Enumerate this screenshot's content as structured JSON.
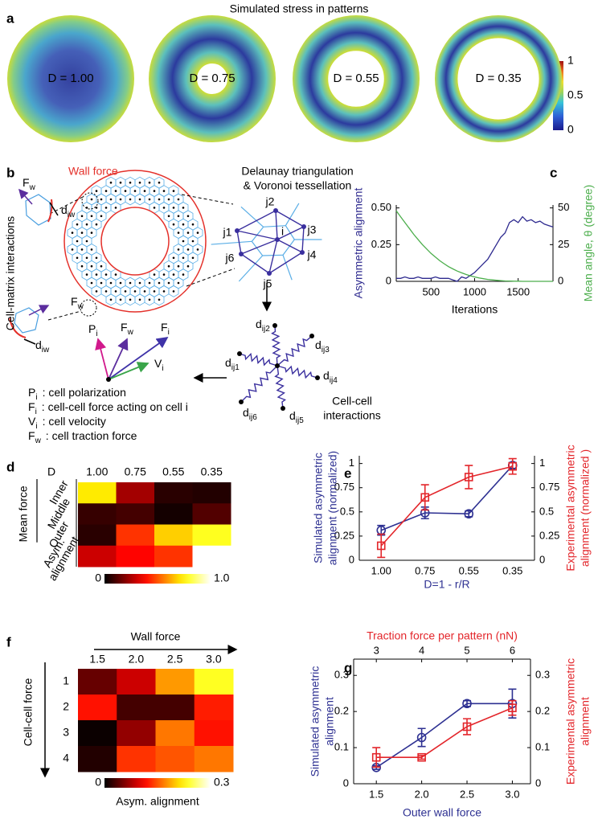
{
  "panel_labels": [
    "a",
    "b",
    "c",
    "d",
    "e",
    "f",
    "g"
  ],
  "stress_patterns": {
    "title": "Simulated stress in patterns",
    "labels": [
      "D = 1.00",
      "D = 0.75",
      "D = 0.55",
      "D = 0.35"
    ],
    "colorbar_ticks": [
      1,
      0.5,
      0
    ]
  },
  "model_diagram": {
    "wall_force": "Wall force",
    "tessellation": [
      "Delaunay triangulation",
      "& Voronoi tessellation"
    ],
    "cell_matrix": "Cell-matrix interactions",
    "cell_cell": [
      "Cell-cell",
      "interactions"
    ],
    "neighbors": [
      "j1",
      "j2",
      "j3",
      "j4",
      "j5",
      "j6"
    ],
    "center": "i",
    "symbols": [
      {
        "base": "F",
        "sub": "w"
      },
      {
        "base": "d",
        "sub": "iw"
      },
      {
        "base": "F",
        "sub": "w"
      },
      {
        "base": "d",
        "sub": "iw"
      },
      {
        "base": "P",
        "sub": "i"
      },
      {
        "base": "F",
        "sub": "w"
      },
      {
        "base": "F",
        "sub": "i"
      },
      {
        "base": "V",
        "sub": "i"
      }
    ],
    "springs": [
      {
        "base": "d",
        "sub": "ij1"
      },
      {
        "base": "d",
        "sub": "ij2"
      },
      {
        "base": "d",
        "sub": "ij3"
      },
      {
        "base": "d",
        "sub": "ij4"
      },
      {
        "base": "d",
        "sub": "ij5"
      },
      {
        "base": "d",
        "sub": "ij6"
      }
    ],
    "legend": [
      {
        "base": "P",
        "sub": "i",
        "text": ": cell polarization"
      },
      {
        "base": "F",
        "sub": "i",
        "text": ": cell-cell force acting on cell i"
      },
      {
        "base": "V",
        "sub": "i",
        "text": ": cell velocity"
      },
      {
        "base": "F",
        "sub": "w",
        "text": ": cell traction force"
      }
    ]
  },
  "chart_data": [
    {
      "type": "line",
      "x": [
        100,
        150,
        200,
        250,
        300,
        350,
        400,
        450,
        500,
        550,
        600,
        650,
        700,
        750,
        800,
        850,
        900,
        950,
        1000,
        1050,
        1100,
        1150,
        1200,
        1250,
        1300,
        1350,
        1400,
        1450,
        1500,
        1550,
        1600,
        1650,
        1700,
        1750,
        1800,
        1850,
        1900
      ],
      "xlim": [
        100,
        1900
      ],
      "xticks": [
        500,
        1000,
        1500
      ],
      "xlabel": "Iterations",
      "ylim": [
        0,
        0.52
      ],
      "yticks": [
        0,
        0.25,
        {
          "value": 0.5,
          "label": "0.50"
        }
      ],
      "ylabel": [
        "Asymmetric alignment"
      ],
      "ylabel_color": "#2e2a8f",
      "y2lim": [
        0,
        52
      ],
      "y2ticks": [
        0,
        25,
        50
      ],
      "y2label": [
        "Mean angle, θ (degree)"
      ],
      "y2label_color": "#4cae4c",
      "series": [
        {
          "color": "#2e2a8f",
          "values": [
            0.02,
            0.02,
            0.03,
            0.02,
            0.02,
            0.03,
            0.02,
            0.02,
            0.02,
            0.03,
            0.02,
            0.02,
            0.02,
            0.01,
            0,
            0.03,
            0.02,
            0.04,
            0.06,
            0.09,
            0.12,
            0.15,
            0.2,
            0.25,
            0.3,
            0.33,
            0.4,
            0.42,
            0.4,
            0.44,
            0.41,
            0.42,
            0.4,
            0.41,
            0.39,
            0.38,
            0.37
          ]
        },
        {
          "color": "#4cae4c",
          "axis": "y2",
          "values": [
            48,
            44,
            40,
            36,
            32,
            28.5,
            25,
            22,
            19,
            16.5,
            14,
            12,
            10,
            8.5,
            7,
            5.8,
            4.7,
            3.8,
            3,
            2.3,
            1.8,
            1.3,
            1,
            0.7,
            0.5,
            0.3,
            0.2,
            0.1,
            0.1,
            0,
            0,
            0,
            0,
            0,
            0,
            0,
            0
          ]
        }
      ]
    },
    {
      "type": "heatmap",
      "columns_title": "D",
      "columns": [
        "1.00",
        "0.75",
        "0.55",
        "0.35"
      ],
      "rows": [
        [
          "Inner"
        ],
        [
          "Middle"
        ],
        [
          "Outer"
        ],
        [
          "Asym.",
          "alignment"
        ]
      ],
      "row_group": "Mean force",
      "values": [
        [
          0.72,
          0.24,
          0.06,
          0.05
        ],
        [
          0.08,
          0.1,
          0.03,
          0.12
        ],
        [
          0.06,
          0.45,
          0.68,
          0.78
        ],
        [
          0.3,
          0.38,
          0.45,
          1.0
        ]
      ],
      "clim": [
        0,
        1
      ],
      "colorbar_ticks": [
        0,
        {
          "value": 1,
          "label": "1.0"
        }
      ]
    },
    {
      "type": "line",
      "categories": [
        "1.00",
        "0.75",
        "0.55",
        "0.35"
      ],
      "xlabel": "D=1 - r/R",
      "xlabel_color": "#2e3192",
      "ylim": [
        0,
        1.08
      ],
      "yticks": [
        0,
        0.25,
        0.5,
        0.75,
        1
      ],
      "ylabel": [
        "Simulated asymmetric",
        "alignment (normalized)"
      ],
      "ylabel_color": "#2e3192",
      "y2lim": [
        0,
        1.08
      ],
      "y2ticks": [
        0,
        0.25,
        0.5,
        0.75,
        1
      ],
      "y2label": [
        "Experimental asymmetric",
        "alignment (normalized )"
      ],
      "y2label_color": "#e3262b",
      "series": [
        {
          "color": "#2e3192",
          "marker": "circle",
          "values": [
            0.31,
            0.49,
            0.48,
            0.98
          ],
          "errors": [
            0.05,
            0.06,
            0.03,
            0.03
          ]
        },
        {
          "color": "#e3262b",
          "marker": "square",
          "axis": "y2",
          "values": [
            0.15,
            0.65,
            0.86,
            0.97
          ],
          "errors": [
            0.12,
            0.13,
            0.12,
            0.08
          ]
        }
      ]
    },
    {
      "type": "heatmap",
      "columns_title": "Wall force",
      "columns": [
        "1.5",
        "2.0",
        "2.5",
        "3.0"
      ],
      "rows_title": "Cell-cell force",
      "rows": [
        [
          "1"
        ],
        [
          "2"
        ],
        [
          "3"
        ],
        [
          "4"
        ]
      ],
      "values": [
        [
          0.045,
          0.09,
          0.18,
          0.235
        ],
        [
          0.12,
          0.03,
          0.03,
          0.125
        ],
        [
          0.005,
          0.065,
          0.165,
          0.12
        ],
        [
          0.015,
          0.135,
          0.15,
          0.165
        ]
      ],
      "clim": [
        0,
        0.3
      ],
      "colorbar_ticks": [
        0,
        0.3
      ],
      "colorbar_label": "Asym. alignment"
    },
    {
      "type": "line",
      "x": [
        1.5,
        2,
        2.5,
        3
      ],
      "xlim": [
        1.25,
        3.2
      ],
      "xticks": [
        1.5,
        {
          "value": 2,
          "label": "2.0"
        },
        2.5,
        {
          "value": 3,
          "label": "3.0"
        }
      ],
      "xlabel": "Outer wall force",
      "xlabel_color": "#2e3192",
      "x2lim": [
        2.5,
        6.4
      ],
      "x2ticks": [
        3,
        4,
        5,
        6
      ],
      "x2label": "Traction force per pattern (nN)",
      "x2label_color": "#e3262b",
      "ylim": [
        0,
        0.345
      ],
      "yticks": [
        0,
        0.1,
        0.2,
        0.3
      ],
      "ylabel": [
        "Simulated asymmetric",
        "alignment"
      ],
      "ylabel_color": "#2e3192",
      "y2lim": [
        0,
        0.345
      ],
      "y2ticks": [
        0,
        0.1,
        0.2,
        0.3
      ],
      "y2label": [
        "Experimental asymmetric",
        "alignment"
      ],
      "y2label_color": "#e3262b",
      "series": [
        {
          "color": "#2e3192",
          "marker": "circle",
          "values": [
            0.045,
            0.128,
            0.222,
            0.222
          ],
          "errors": [
            0.005,
            0.025,
            0.008,
            0.04
          ]
        },
        {
          "color": "#e3262b",
          "marker": "square",
          "axis": "y2",
          "values": [
            0.073,
            0.073,
            0.158,
            0.21
          ],
          "errors": [
            0.027,
            0.005,
            0.022,
            0.02
          ]
        }
      ]
    }
  ]
}
